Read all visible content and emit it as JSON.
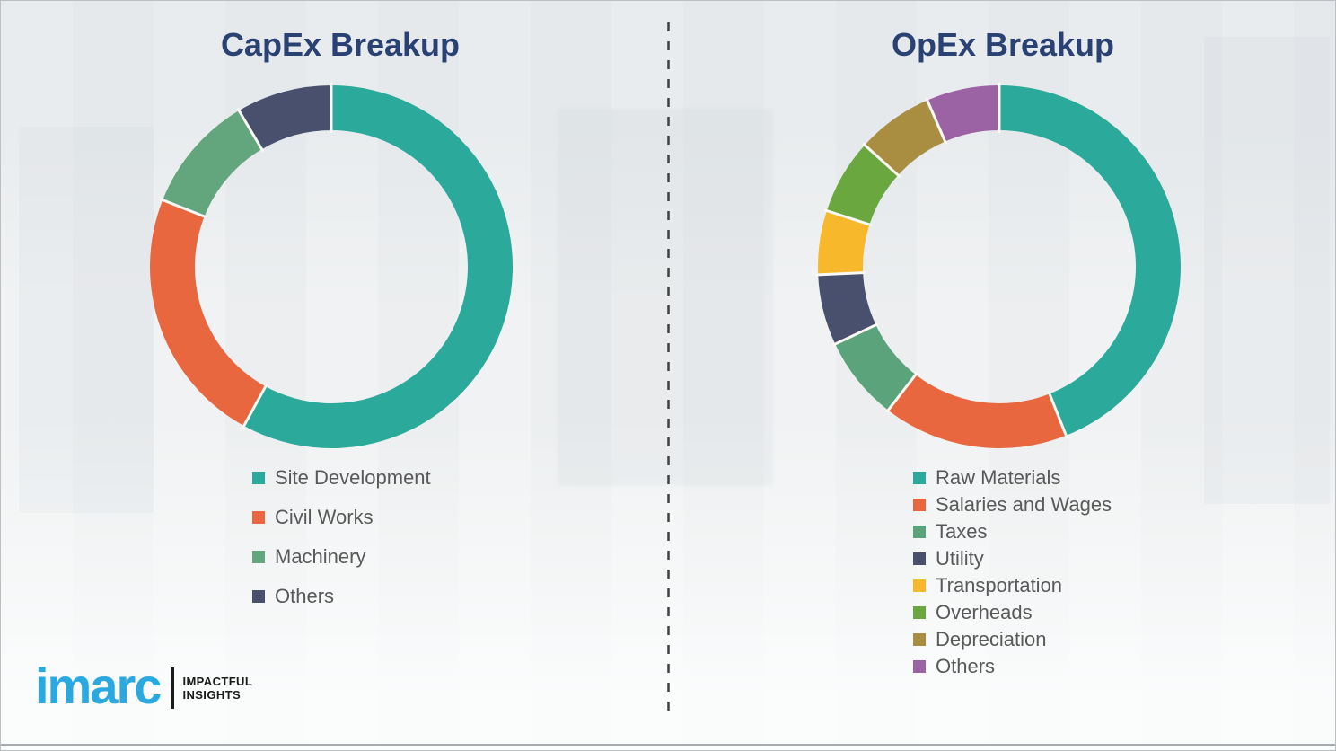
{
  "page": {
    "background_color": "#eef0f1",
    "border_color": "#bcc0c4",
    "divider_color": "#414141",
    "title_color": "#2a4273",
    "legend_text_color": "#595959",
    "segment_gap_color": "#faf9f5"
  },
  "chart_data": [
    {
      "type": "pie",
      "donut": true,
      "name": "capex",
      "title": "CapEx Breakup",
      "categories": [
        "Site Development",
        "Civil Works",
        "Machinery",
        "Others"
      ],
      "values": [
        58,
        23,
        10.5,
        8.5
      ],
      "colors": [
        "#2ba99a",
        "#e8673f",
        "#63a67d",
        "#48506e"
      ],
      "unit": "percent-of-ring (estimated from arc angles)",
      "start_angle_deg": 0,
      "direction": "clockwise",
      "legend_position": "below-left"
    },
    {
      "type": "pie",
      "donut": true,
      "name": "opex",
      "title": "OpEx Breakup",
      "categories": [
        "Raw Materials",
        "Salaries and Wages",
        "Taxes",
        "Utility",
        "Transportation",
        "Overheads",
        "Depreciation",
        "Others"
      ],
      "values": [
        44,
        16.5,
        7.5,
        6.3,
        5.7,
        6.7,
        6.8,
        6.5
      ],
      "colors": [
        "#2ba99a",
        "#e8673f",
        "#5ba37b",
        "#48506e",
        "#f7b82b",
        "#6aa73e",
        "#a98e42",
        "#9c63a4"
      ],
      "unit": "percent-of-ring (estimated from arc angles)",
      "start_angle_deg": 0,
      "direction": "clockwise",
      "legend_position": "below-left"
    }
  ],
  "logo": {
    "brand": "imarc",
    "tagline_line1": "IMPACTFUL",
    "tagline_line2": "INSIGHTS",
    "brand_color": "#2aa9e0"
  }
}
